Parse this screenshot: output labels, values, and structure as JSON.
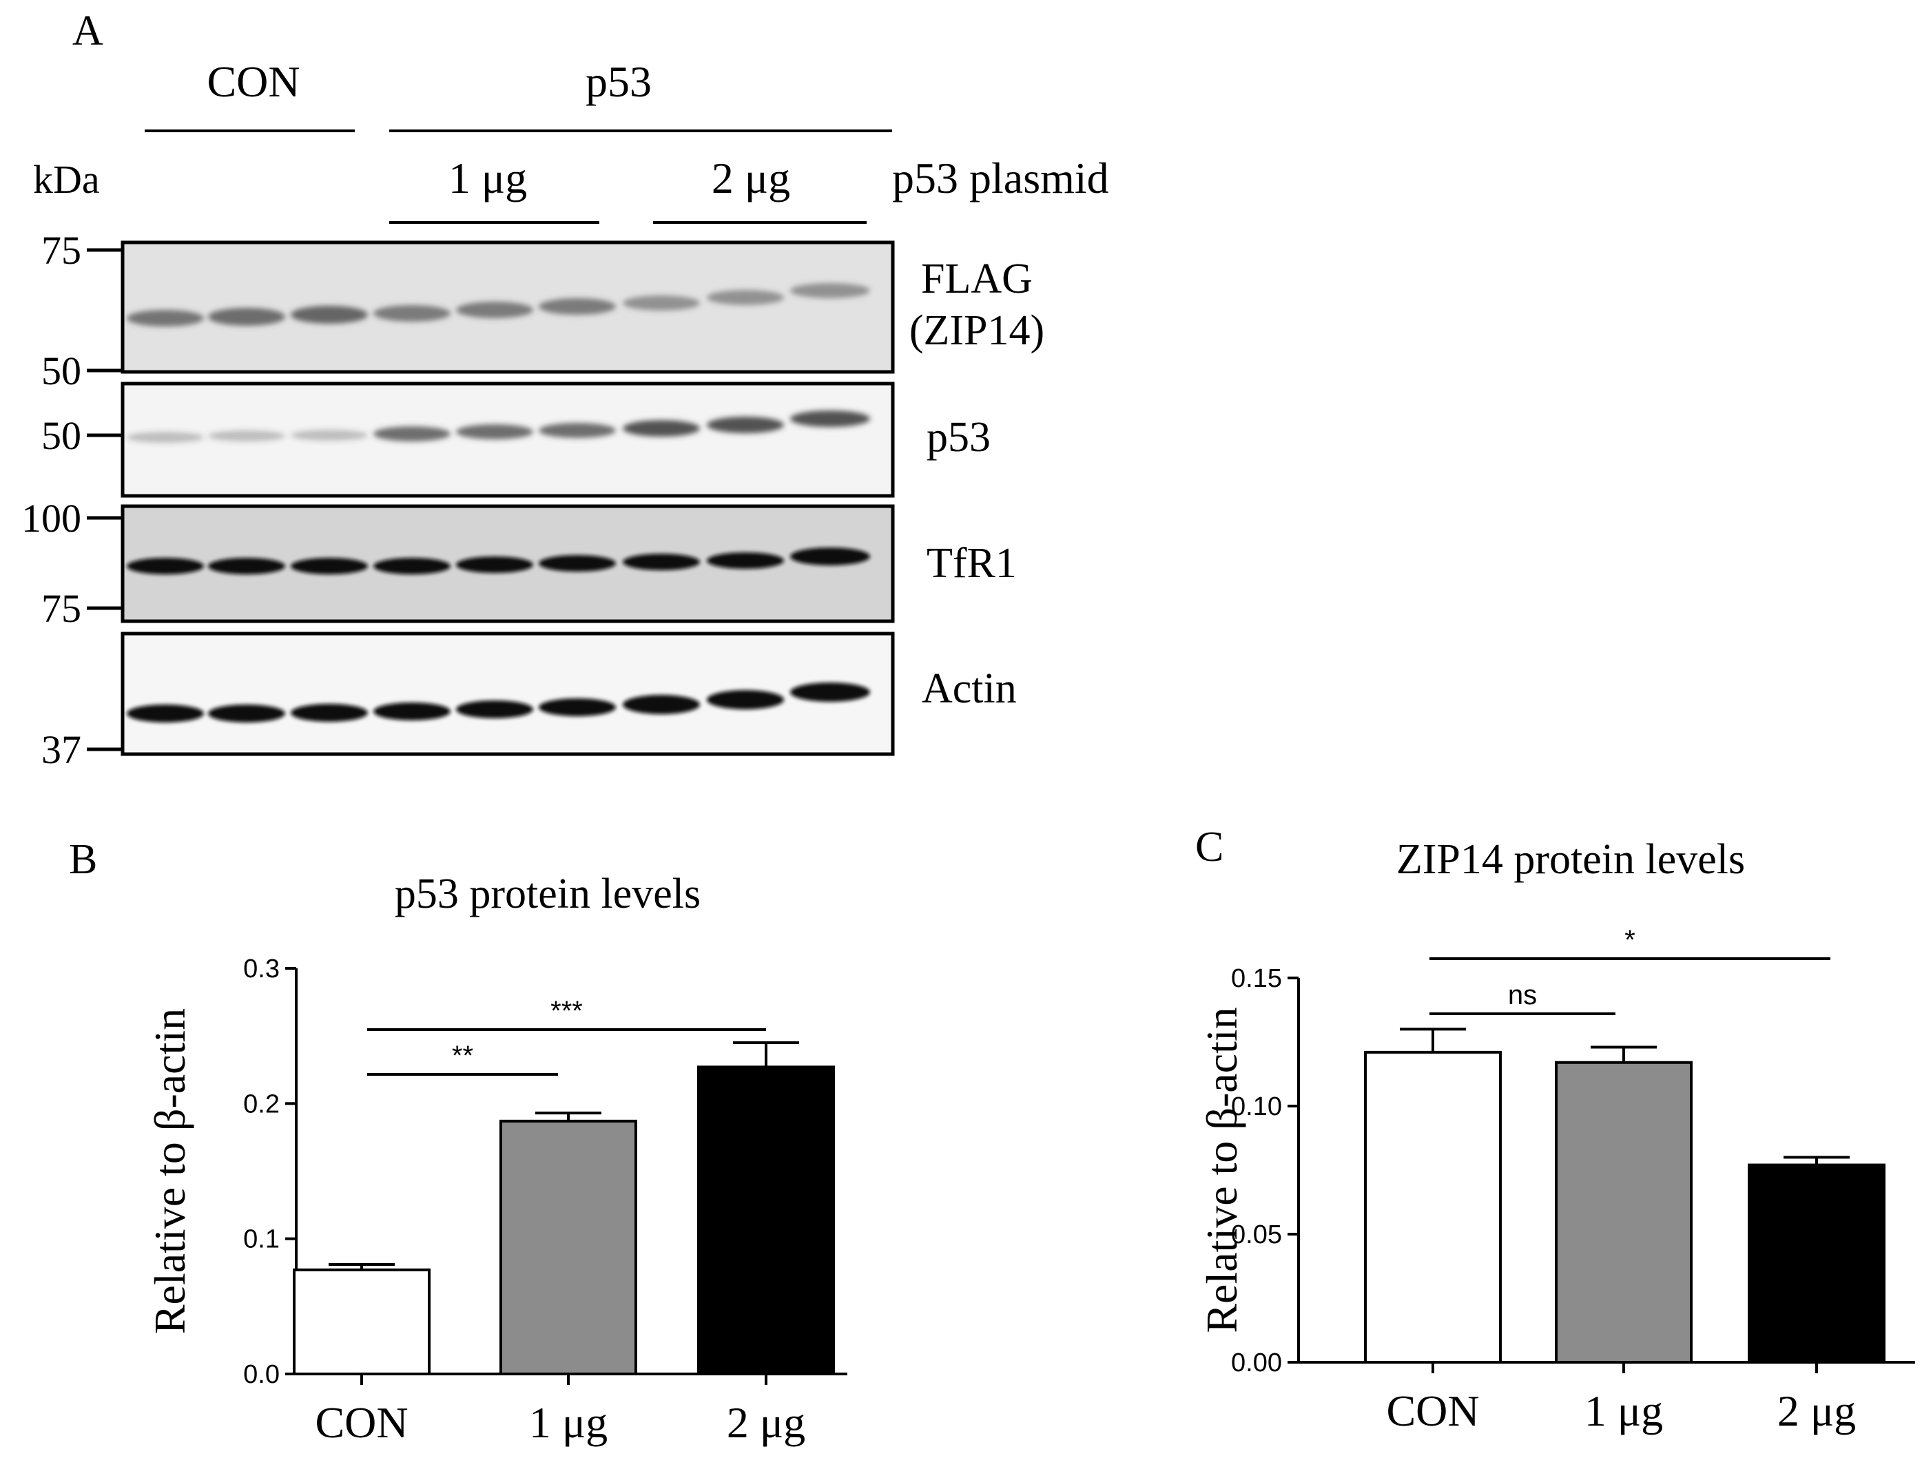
{
  "panel_a": {
    "letter": "A",
    "group_con": "CON",
    "group_p53": "p53",
    "dose_1": "1 μg",
    "dose_2": "2 μg",
    "plasmid_label": "p53 plasmid",
    "kda_label": "kDa",
    "markers": {
      "m75_top": "75",
      "m50_a": "50",
      "m50_b": "50",
      "m100": "100",
      "m75_b": "75",
      "m37": "37"
    },
    "blot_labels": {
      "flag": "FLAG",
      "zip14": "(ZIP14)",
      "p53": "p53",
      "tfr1": "TfR1",
      "actin": "Actin"
    }
  },
  "colors": {
    "con_bar": "#ffffff",
    "dose1_bar": "#8c8c8c",
    "dose2_bar": "#000000",
    "axis": "#000000"
  },
  "chart_data": [
    {
      "type": "bar",
      "panel": "B",
      "title": "p53 protein levels",
      "ylabel": "Relative to β-actin",
      "xlabel": "",
      "categories": [
        "CON",
        "1 μg",
        "2 μg"
      ],
      "values": [
        0.077,
        0.187,
        0.227
      ],
      "errors": [
        0.004,
        0.006,
        0.018
      ],
      "ylim": [
        0,
        0.3
      ],
      "yticks": [
        "0.0",
        "0.1",
        "0.2",
        "0.3"
      ],
      "ytick_values": [
        0,
        0.1,
        0.2,
        0.3
      ],
      "significance": [
        {
          "from": 0,
          "to": 1,
          "label": "**"
        },
        {
          "from": 0,
          "to": 2,
          "label": "***"
        }
      ]
    },
    {
      "type": "bar",
      "panel": "C",
      "title": "ZIP14 protein levels",
      "ylabel": "Relative to β-actin",
      "xlabel": "",
      "categories": [
        "CON",
        "1 μg",
        "2 μg"
      ],
      "values": [
        0.121,
        0.117,
        0.077
      ],
      "errors": [
        0.009,
        0.006,
        0.003
      ],
      "ylim": [
        0,
        0.15
      ],
      "yticks": [
        "0.00",
        "0.05",
        "0.10",
        "0.15"
      ],
      "ytick_values": [
        0,
        0.05,
        0.1,
        0.15
      ],
      "significance": [
        {
          "from": 0,
          "to": 1,
          "label": "ns"
        },
        {
          "from": 0,
          "to": 2,
          "label": "*"
        }
      ]
    }
  ]
}
